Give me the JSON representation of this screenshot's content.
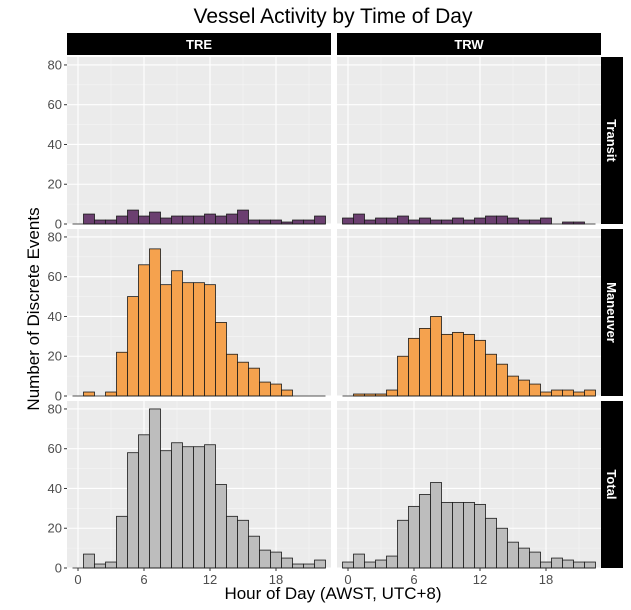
{
  "chart_data": {
    "type": "bar",
    "title": "Vessel Activity by Time of Day",
    "xlabel": "Hour of Day (AWST, UTC+8)",
    "ylabel": "Number of Discrete Events",
    "xlim": [
      -1,
      23
    ],
    "ylim": [
      0,
      84
    ],
    "x_ticks": [
      0,
      6,
      12,
      18
    ],
    "y_ticks": [
      0,
      20,
      40,
      60,
      80
    ],
    "grid": true,
    "bin_width": 1,
    "columns": [
      "TRE",
      "TRW"
    ],
    "rows": [
      "Transit",
      "Maneuver",
      "Total"
    ],
    "colors": {
      "Transit": "#6b3f70",
      "Maneuver": "#f5a24e",
      "Total": "#bdbdbd"
    },
    "x": [
      0,
      1,
      2,
      3,
      4,
      5,
      6,
      7,
      8,
      9,
      10,
      11,
      12,
      13,
      14,
      15,
      16,
      17,
      18,
      19,
      20,
      21,
      22
    ],
    "panels": [
      {
        "column": "TRE",
        "row": "Transit",
        "values": [
          0,
          5,
          2,
          2,
          4,
          7,
          4,
          6,
          3,
          4,
          4,
          4,
          5,
          4,
          5,
          7,
          2,
          2,
          2,
          1,
          2,
          2,
          4
        ]
      },
      {
        "column": "TRW",
        "row": "Transit",
        "values": [
          3,
          5,
          2,
          3,
          3,
          4,
          2,
          3,
          2,
          2,
          3,
          2,
          3,
          4,
          4,
          3,
          2,
          2,
          3,
          0,
          1,
          1,
          0
        ]
      },
      {
        "column": "TRE",
        "row": "Maneuver",
        "values": [
          0,
          2,
          0,
          2,
          22,
          50,
          66,
          74,
          56,
          63,
          57,
          57,
          56,
          37,
          21,
          17,
          14,
          7,
          6,
          3,
          0,
          0,
          0
        ]
      },
      {
        "column": "TRW",
        "row": "Maneuver",
        "values": [
          0,
          1,
          1,
          1,
          3,
          20,
          29,
          34,
          40,
          31,
          32,
          31,
          28,
          21,
          16,
          10,
          8,
          6,
          2,
          3,
          3,
          2,
          3
        ]
      },
      {
        "column": "TRE",
        "row": "Total",
        "values": [
          0,
          7,
          2,
          3,
          26,
          58,
          67,
          80,
          59,
          63,
          61,
          61,
          62,
          42,
          26,
          24,
          16,
          9,
          8,
          5,
          2,
          2,
          4
        ]
      },
      {
        "column": "TRW",
        "row": "Total",
        "values": [
          3,
          7,
          3,
          4,
          6,
          24,
          31,
          37,
          43,
          33,
          33,
          33,
          32,
          25,
          20,
          13,
          10,
          8,
          3,
          5,
          4,
          3,
          3
        ]
      }
    ]
  }
}
